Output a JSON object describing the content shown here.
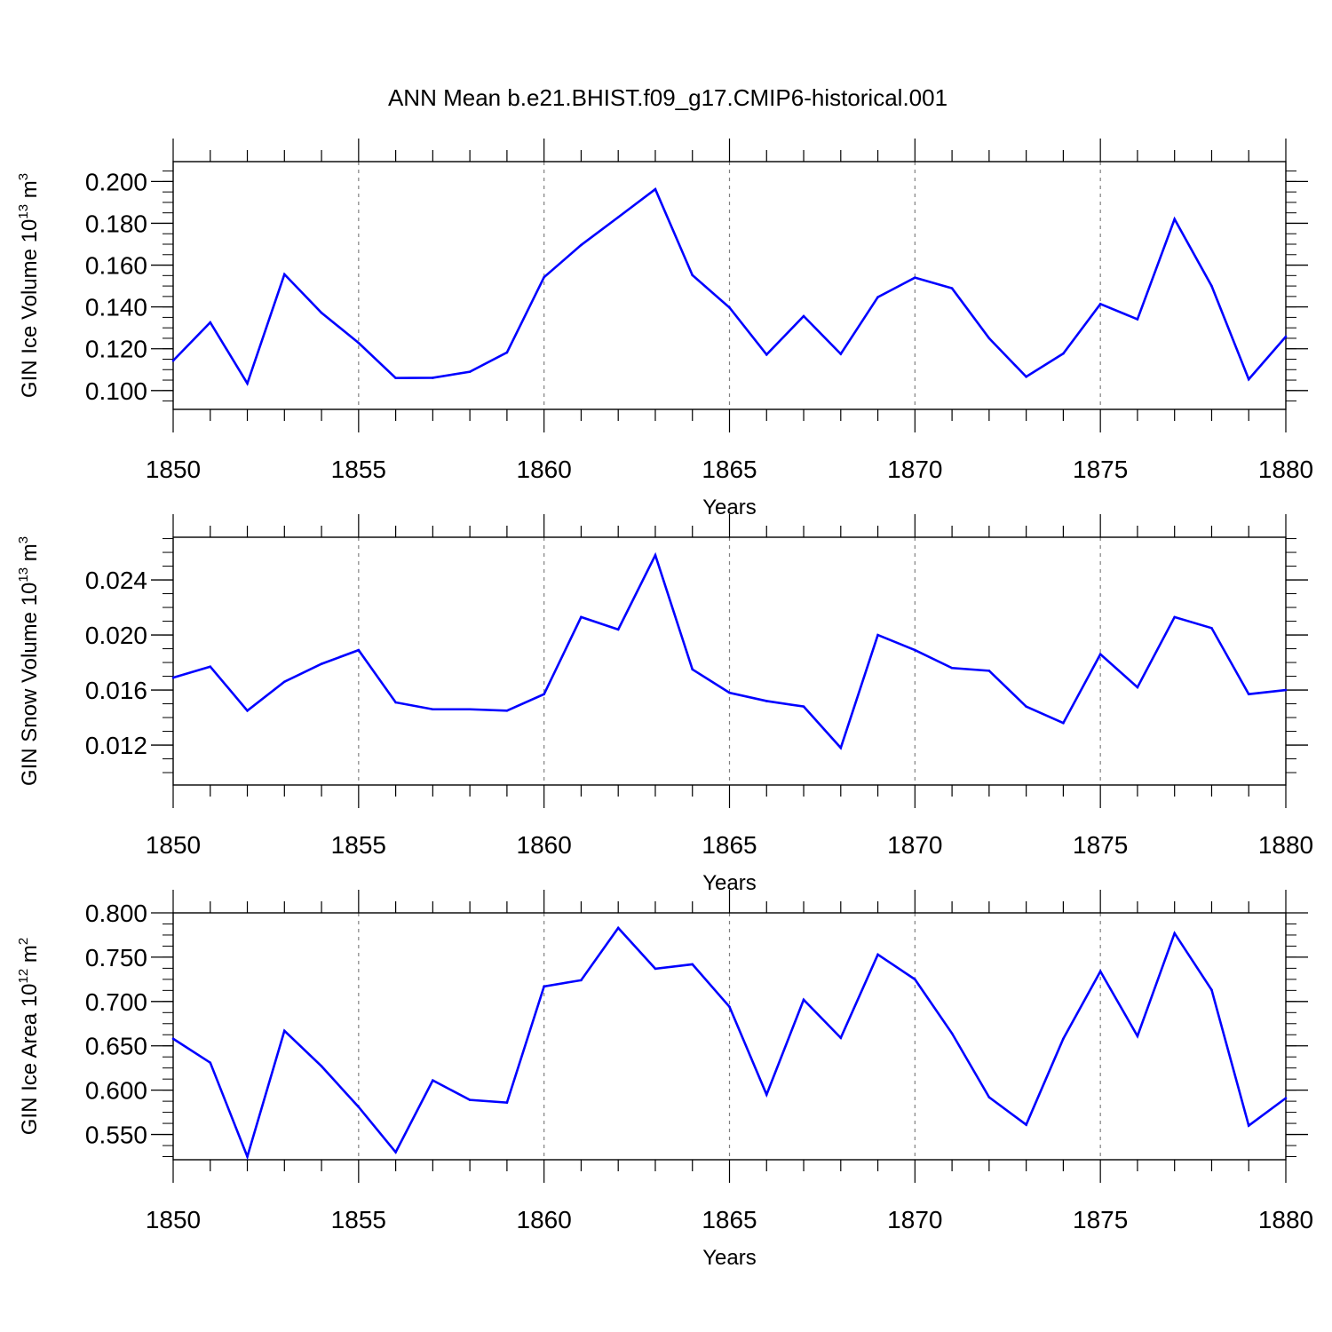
{
  "title": "ANN Mean b.e21.BHIST.f09_g17.CMIP6-historical.001",
  "colors": {
    "series": "#0000ff",
    "axis": "#000000",
    "grid": "#808080",
    "background": "#ffffff"
  },
  "chart_data": [
    {
      "type": "line",
      "xlabel": "Years",
      "ylabel": {
        "text": "GIN Ice Volume 10",
        "sup": "13",
        "tail": " m",
        "sup2": "3"
      },
      "xlim": [
        1850,
        1880
      ],
      "ylim": [
        0.091,
        0.2095
      ],
      "grid": "vertical dashed lines at major x ticks",
      "x_ticks": [
        1850,
        1855,
        1860,
        1865,
        1870,
        1875,
        1880
      ],
      "x_tick_labels": [
        "1850",
        "1855",
        "1860",
        "1865",
        "1870",
        "1875",
        "1880"
      ],
      "y_ticks": [
        0.1,
        0.12,
        0.14,
        0.16,
        0.18,
        0.2
      ],
      "y_tick_labels": [
        "0.100",
        "0.120",
        "0.140",
        "0.160",
        "0.180",
        "0.200"
      ],
      "y_minor_step": 0.005,
      "x": [
        1850,
        1851,
        1852,
        1853,
        1854,
        1855,
        1856,
        1857,
        1858,
        1859,
        1860,
        1861,
        1862,
        1863,
        1864,
        1865,
        1866,
        1867,
        1868,
        1869,
        1870,
        1871,
        1872,
        1873,
        1874,
        1875,
        1876,
        1877,
        1878,
        1879,
        1880
      ],
      "values": [
        0.1143,
        0.1326,
        0.1034,
        0.1556,
        0.1372,
        0.1228,
        0.106,
        0.1061,
        0.109,
        0.1182,
        0.1542,
        0.1696,
        0.1829,
        0.1963,
        0.1552,
        0.1397,
        0.1172,
        0.1356,
        0.1175,
        0.1447,
        0.154,
        0.1489,
        0.125,
        0.1066,
        0.1177,
        0.1414,
        0.1341,
        0.182,
        0.15,
        0.1054,
        0.1258
      ]
    },
    {
      "type": "line",
      "xlabel": "Years",
      "ylabel": {
        "text": "GIN Snow Volume 10",
        "sup": "13",
        "tail": " m",
        "sup2": "3"
      },
      "xlim": [
        1850,
        1880
      ],
      "ylim": [
        0.0091,
        0.0271
      ],
      "grid": "vertical dashed lines at major x ticks",
      "x_ticks": [
        1850,
        1855,
        1860,
        1865,
        1870,
        1875,
        1880
      ],
      "x_tick_labels": [
        "1850",
        "1855",
        "1860",
        "1865",
        "1870",
        "1875",
        "1880"
      ],
      "y_ticks": [
        0.012,
        0.016,
        0.02,
        0.024
      ],
      "y_tick_labels": [
        "0.012",
        "0.016",
        "0.020",
        "0.024"
      ],
      "y_minor_step": 0.001,
      "x": [
        1850,
        1851,
        1852,
        1853,
        1854,
        1855,
        1856,
        1857,
        1858,
        1859,
        1860,
        1861,
        1862,
        1863,
        1864,
        1865,
        1866,
        1867,
        1868,
        1869,
        1870,
        1871,
        1872,
        1873,
        1874,
        1875,
        1876,
        1877,
        1878,
        1879,
        1880
      ],
      "values": [
        0.0169,
        0.0177,
        0.0145,
        0.0166,
        0.0179,
        0.0189,
        0.0151,
        0.0146,
        0.0146,
        0.0145,
        0.0157,
        0.0213,
        0.0204,
        0.0258,
        0.0175,
        0.0158,
        0.0152,
        0.0148,
        0.0118,
        0.02,
        0.0189,
        0.0176,
        0.0174,
        0.0148,
        0.0136,
        0.0186,
        0.0162,
        0.0213,
        0.0205,
        0.0157,
        0.016
      ]
    },
    {
      "type": "line",
      "xlabel": "Years",
      "ylabel": {
        "text": "GIN Ice Area 10",
        "sup": "12",
        "tail": " m",
        "sup2": "2"
      },
      "xlim": [
        1850,
        1880
      ],
      "ylim": [
        0.5215,
        0.8
      ],
      "grid": "vertical dashed lines at major x ticks",
      "x_ticks": [
        1850,
        1855,
        1860,
        1865,
        1870,
        1875,
        1880
      ],
      "x_tick_labels": [
        "1850",
        "1855",
        "1860",
        "1865",
        "1870",
        "1875",
        "1880"
      ],
      "y_ticks": [
        0.55,
        0.6,
        0.65,
        0.7,
        0.75,
        0.8
      ],
      "y_tick_labels": [
        "0.550",
        "0.600",
        "0.650",
        "0.700",
        "0.750",
        "0.800"
      ],
      "y_minor_step": 0.0125,
      "x": [
        1850,
        1851,
        1852,
        1853,
        1854,
        1855,
        1856,
        1857,
        1858,
        1859,
        1860,
        1861,
        1862,
        1863,
        1864,
        1865,
        1866,
        1867,
        1868,
        1869,
        1870,
        1871,
        1872,
        1873,
        1874,
        1875,
        1876,
        1877,
        1878,
        1879,
        1880
      ],
      "values": [
        0.658,
        0.631,
        0.525,
        0.667,
        0.627,
        0.581,
        0.53,
        0.611,
        0.589,
        0.586,
        0.717,
        0.724,
        0.783,
        0.737,
        0.742,
        0.694,
        0.595,
        0.702,
        0.659,
        0.753,
        0.725,
        0.664,
        0.592,
        0.561,
        0.658,
        0.734,
        0.661,
        0.777,
        0.713,
        0.56,
        0.591
      ]
    }
  ]
}
